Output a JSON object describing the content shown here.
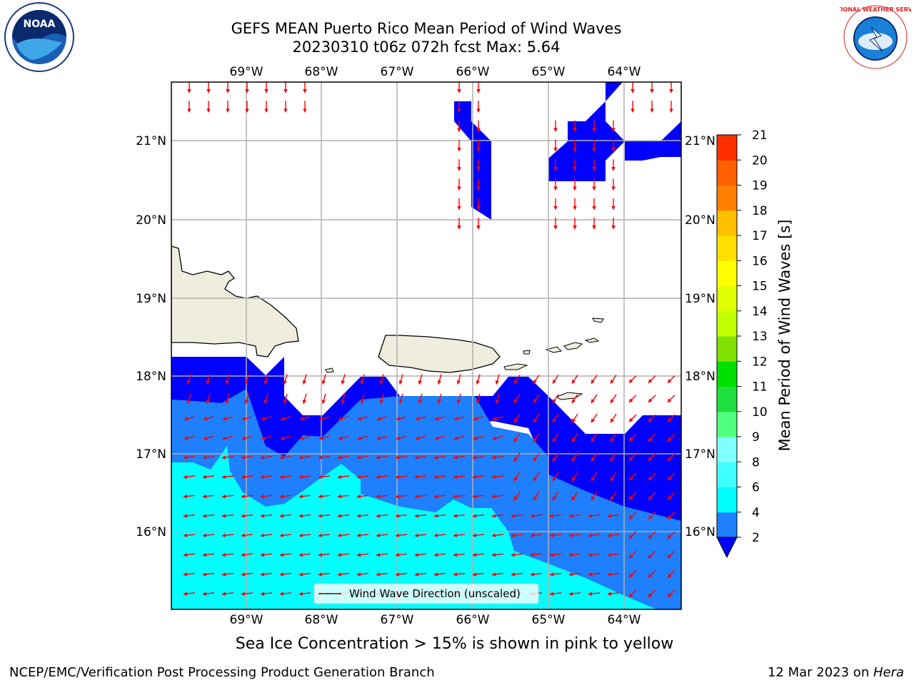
{
  "title": {
    "line1": "GEFS MEAN Puerto Rico Mean Period of Wind Waves",
    "line2": "20230310 t06z 072h fcst   Max: 5.64"
  },
  "map": {
    "lon_labels": [
      "69°W",
      "68°W",
      "67°W",
      "66°W",
      "65°W",
      "64°W"
    ],
    "lat_labels": [
      "21°N",
      "20°N",
      "19°N",
      "18°N",
      "17°N",
      "16°N"
    ],
    "legend_label": "Wind Wave Direction (unscaled)",
    "colors": {
      "land": "#efedde",
      "band_2_4": "#1e7fff",
      "band_below_2": "#0000ff",
      "band_4_6": "#00ffff",
      "arrow": "#ff0000"
    }
  },
  "colorbar": {
    "label": "Mean Period of Wind Waves [s]",
    "ticks": [
      "2",
      "4",
      "6",
      "8",
      "9",
      "10",
      "11",
      "12",
      "13",
      "14",
      "15",
      "16",
      "17",
      "18",
      "19",
      "20",
      "21"
    ],
    "colors": [
      "#1e7fff",
      "#00ffff",
      "#40ffff",
      "#80ffff",
      "#50ff80",
      "#20e040",
      "#00e000",
      "#80e000",
      "#c0ff00",
      "#e0ff00",
      "#ffff00",
      "#ffe000",
      "#ffc000",
      "#ff8000",
      "#ff6000",
      "#ff3000"
    ],
    "under_color": "#0000ff",
    "top_color": "#ff0000"
  },
  "logos": {
    "noaa_text": "NOAA",
    "nws_text": "NATIONAL WEATHER SERVICE"
  },
  "caption": "Sea Ice Concentration > 15% is shown in pink to yellow",
  "footer": {
    "left": "NCEP/EMC/Verification Post Processing Product Generation Branch",
    "date": "12 Mar 2023 on ",
    "host": "Hera"
  }
}
